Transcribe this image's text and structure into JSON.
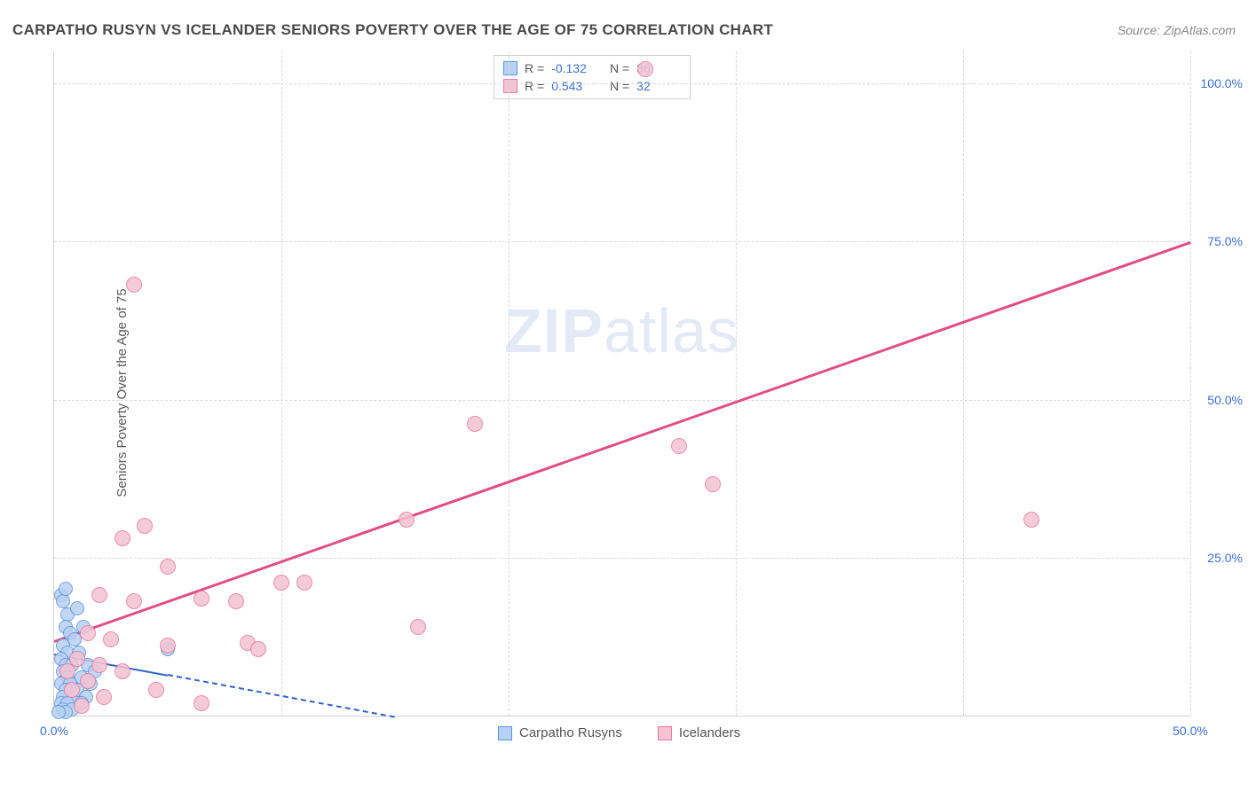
{
  "title": "CARPATHO RUSYN VS ICELANDER SENIORS POVERTY OVER THE AGE OF 75 CORRELATION CHART",
  "source": "Source: ZipAtlas.com",
  "y_axis_label": "Seniors Poverty Over the Age of 75",
  "watermark_bold": "ZIP",
  "watermark_rest": "atlas",
  "chart": {
    "type": "scatter",
    "xlim": [
      0,
      50
    ],
    "ylim": [
      0,
      105
    ],
    "x_ticks": [
      0,
      50
    ],
    "x_tick_labels": [
      "0.0%",
      "50.0%"
    ],
    "y_ticks": [
      25,
      50,
      75,
      100
    ],
    "y_tick_labels": [
      "25.0%",
      "50.0%",
      "75.0%",
      "100.0%"
    ],
    "x_gridlines": [
      10,
      20,
      30,
      40,
      50
    ],
    "y_gridlines": [
      25,
      50,
      75,
      100
    ],
    "background_color": "#ffffff",
    "grid_color": "#d8d8d8",
    "series": [
      {
        "name": "Carpatho Rusyns",
        "color_fill": "#b7d1f2",
        "color_stroke": "#5e93e0",
        "marker_radius": 8,
        "R": "-0.132",
        "N": "36",
        "trend": {
          "x1": 0,
          "y1": 10,
          "x2": 15,
          "y2": 0,
          "color": "#3262c4",
          "solid_until_x": 5,
          "width": 2
        },
        "points": [
          [
            0.3,
            19
          ],
          [
            0.4,
            18
          ],
          [
            0.5,
            20
          ],
          [
            0.6,
            16
          ],
          [
            0.5,
            14
          ],
          [
            0.7,
            13
          ],
          [
            0.4,
            11
          ],
          [
            0.6,
            10
          ],
          [
            0.3,
            9
          ],
          [
            0.5,
            8
          ],
          [
            0.8,
            8
          ],
          [
            0.4,
            7
          ],
          [
            0.6,
            6
          ],
          [
            0.3,
            5
          ],
          [
            0.7,
            5
          ],
          [
            0.5,
            4
          ],
          [
            0.4,
            3
          ],
          [
            0.9,
            3
          ],
          [
            0.3,
            2
          ],
          [
            0.6,
            2
          ],
          [
            0.4,
            1
          ],
          [
            0.8,
            1
          ],
          [
            0.5,
            0.5
          ],
          [
            1.0,
            4
          ],
          [
            1.2,
            6
          ],
          [
            1.5,
            8
          ],
          [
            1.1,
            10
          ],
          [
            0.9,
            12
          ],
          [
            1.3,
            14
          ],
          [
            1.0,
            17
          ],
          [
            1.4,
            3
          ],
          [
            1.6,
            5
          ],
          [
            1.2,
            2
          ],
          [
            1.8,
            7
          ],
          [
            5.0,
            10.5
          ],
          [
            0.2,
            0.5
          ]
        ]
      },
      {
        "name": "Icelanders",
        "color_fill": "#f5c3d2",
        "color_stroke": "#e57ba0",
        "marker_radius": 9,
        "R": "0.543",
        "N": "32",
        "trend": {
          "x1": 0,
          "y1": 12,
          "x2": 50,
          "y2": 75,
          "color": "#e04e85",
          "width": 2.5
        },
        "points": [
          [
            26,
            102
          ],
          [
            3.5,
            68
          ],
          [
            18.5,
            46
          ],
          [
            27.5,
            42.5
          ],
          [
            29,
            36.5
          ],
          [
            43,
            31
          ],
          [
            15.5,
            31
          ],
          [
            4,
            30
          ],
          [
            3,
            28
          ],
          [
            10,
            21
          ],
          [
            11,
            21
          ],
          [
            5,
            23.5
          ],
          [
            2,
            19
          ],
          [
            3.5,
            18
          ],
          [
            6.5,
            18.5
          ],
          [
            8,
            18
          ],
          [
            16,
            14
          ],
          [
            1.5,
            13
          ],
          [
            2.5,
            12
          ],
          [
            5,
            11
          ],
          [
            8.5,
            11.5
          ],
          [
            9,
            10.5
          ],
          [
            1,
            9
          ],
          [
            2,
            8
          ],
          [
            3,
            7
          ],
          [
            1.5,
            5.5
          ],
          [
            0.8,
            4
          ],
          [
            2.2,
            3
          ],
          [
            4.5,
            4
          ],
          [
            6.5,
            2
          ],
          [
            1.2,
            1.5
          ],
          [
            0.6,
            7
          ]
        ]
      }
    ],
    "legend_bottom": [
      {
        "label": "Carpatho Rusyns",
        "fill": "#b7d1f2",
        "stroke": "#5e93e0"
      },
      {
        "label": "Icelanders",
        "fill": "#f5c3d2",
        "stroke": "#e57ba0"
      }
    ]
  }
}
